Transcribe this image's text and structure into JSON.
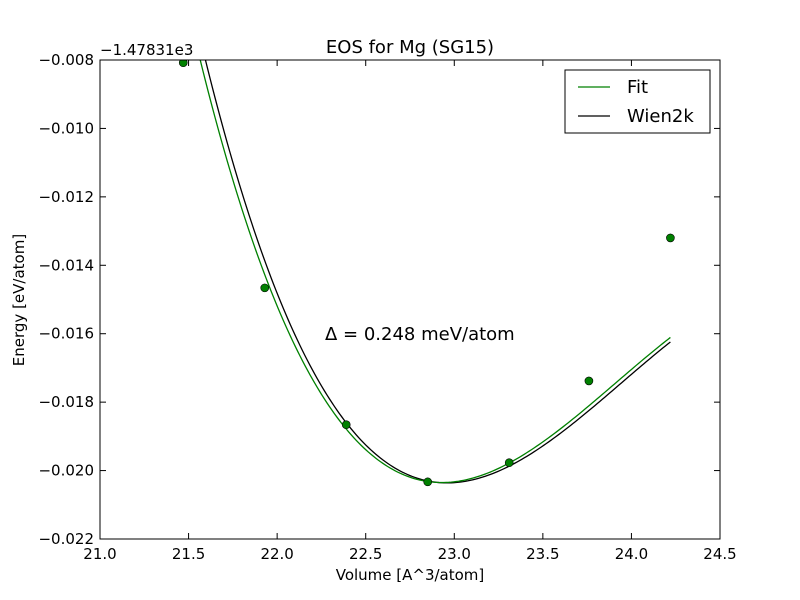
{
  "chart_data": {
    "type": "line",
    "title": "EOS for Mg (SG15)",
    "xlabel": "Volume [A^3/atom]",
    "ylabel": "Energy [eV/atom]",
    "xlim": [
      21.0,
      24.5
    ],
    "ylim": [
      -0.022,
      -0.008
    ],
    "y_offset_label": "−1.47831e3",
    "xticks": [
      "21.0",
      "21.5",
      "22.0",
      "22.5",
      "23.0",
      "23.5",
      "24.0",
      "24.5"
    ],
    "yticks": [
      "−0.008",
      "−0.010",
      "−0.012",
      "−0.014",
      "−0.016",
      "−0.018",
      "−0.020",
      "−0.022"
    ],
    "grid": false,
    "legend_position": "top-right",
    "annotation": "Δ = 0.248 meV/atom",
    "points": {
      "x": [
        21.47,
        21.93,
        22.39,
        22.85,
        23.31,
        23.76,
        24.22
      ],
      "y": [
        -0.00808,
        -0.01466,
        -0.01866,
        -0.02033,
        -0.01977,
        -0.01738,
        -0.0132
      ]
    },
    "series": [
      {
        "name": "Fit",
        "color": "#008000",
        "model": "eos_fit",
        "x_range": [
          21.47,
          24.22
        ],
        "params": {
          "V0": 22.93,
          "E0": -0.02035
        }
      },
      {
        "name": "Wien2k",
        "color": "#000000",
        "model": "eos_reference",
        "x_range": [
          21.47,
          24.22
        ],
        "params": {
          "V0": 22.96,
          "E0": -0.02036
        }
      }
    ],
    "marker_color": "#008000"
  }
}
